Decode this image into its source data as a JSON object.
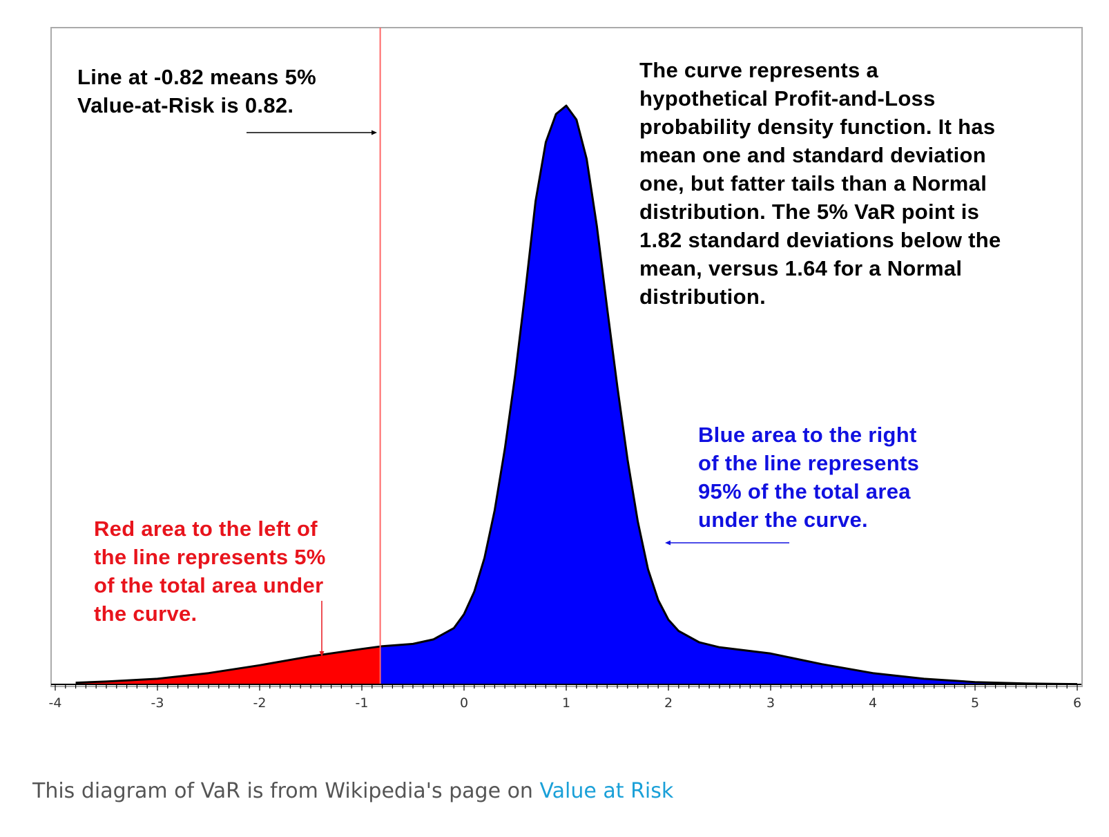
{
  "chart_data": {
    "type": "area",
    "title": "",
    "xlabel": "",
    "ylabel": "",
    "xlim": [
      -4,
      6
    ],
    "ylim": [
      0,
      1.03
    ],
    "x_ticks": [
      -4,
      -3,
      -2,
      -1,
      0,
      1,
      2,
      3,
      4,
      5,
      6
    ],
    "x_tick_labels": [
      "-4",
      "-3",
      "-2",
      "-1",
      "0",
      "1",
      "2",
      "3",
      "4",
      "5",
      "6"
    ],
    "minor_ticks_per_unit": 10,
    "var_line_x": -0.82,
    "grid": false,
    "series": [
      {
        "points": [
          [
            -3.8,
            0.003
          ],
          [
            -3.5,
            0.005
          ],
          [
            -3.0,
            0.01
          ],
          [
            -2.5,
            0.02
          ],
          [
            -2.0,
            0.034
          ],
          [
            -1.5,
            0.05
          ],
          [
            -1.0,
            0.063
          ],
          [
            -0.8,
            0.068
          ],
          [
            -0.5,
            0.072
          ],
          [
            -0.3,
            0.08
          ],
          [
            -0.1,
            0.1
          ],
          [
            0.0,
            0.125
          ],
          [
            0.1,
            0.165
          ],
          [
            0.2,
            0.225
          ],
          [
            0.3,
            0.31
          ],
          [
            0.4,
            0.42
          ],
          [
            0.5,
            0.55
          ],
          [
            0.6,
            0.7
          ],
          [
            0.7,
            0.86
          ],
          [
            0.8,
            0.965
          ],
          [
            0.9,
            1.015
          ],
          [
            1.0,
            1.03
          ],
          [
            1.1,
            1.005
          ],
          [
            1.2,
            0.935
          ],
          [
            1.3,
            0.815
          ],
          [
            1.4,
            0.67
          ],
          [
            1.5,
            0.53
          ],
          [
            1.6,
            0.4
          ],
          [
            1.7,
            0.29
          ],
          [
            1.8,
            0.205
          ],
          [
            1.9,
            0.15
          ],
          [
            2.0,
            0.115
          ],
          [
            2.1,
            0.095
          ],
          [
            2.3,
            0.075
          ],
          [
            2.5,
            0.066
          ],
          [
            3.0,
            0.055
          ],
          [
            3.5,
            0.036
          ],
          [
            4.0,
            0.02
          ],
          [
            4.5,
            0.01
          ],
          [
            5.0,
            0.004
          ],
          [
            5.5,
            0.0015
          ],
          [
            6.0,
            0.0005
          ]
        ]
      }
    ],
    "fill_colors": {
      "left_tail": "#ff0000",
      "body": "#0000ff",
      "var_line": "#ff6666"
    }
  },
  "annotations": {
    "var_line_note": [
      "Line at -0.82 means 5%",
      "Value-at-Risk is 0.82."
    ],
    "curve_note": [
      "The curve represents a",
      "hypothetical Profit-and-Loss",
      "probability density function. It has",
      "mean one and standard deviation",
      "one, but fatter tails than a Normal",
      "distribution. The 5% VaR point is",
      "1.82 standard deviations below the",
      "mean, versus 1.64 for a Normal",
      "distribution."
    ],
    "blue_note": [
      "Blue area to the right",
      "of the line represents",
      "95% of the total area",
      "under the curve."
    ],
    "red_note": [
      "Red area to the left of",
      "the line represents 5%",
      "of the total area under",
      "the curve."
    ],
    "colors": {
      "black_text": "#000000",
      "blue_text": "#1010e0",
      "red_text": "#e8141c"
    }
  },
  "caption": {
    "text": "This diagram of VaR is from Wikipedia's page on ",
    "link_text": "Value at Risk"
  }
}
